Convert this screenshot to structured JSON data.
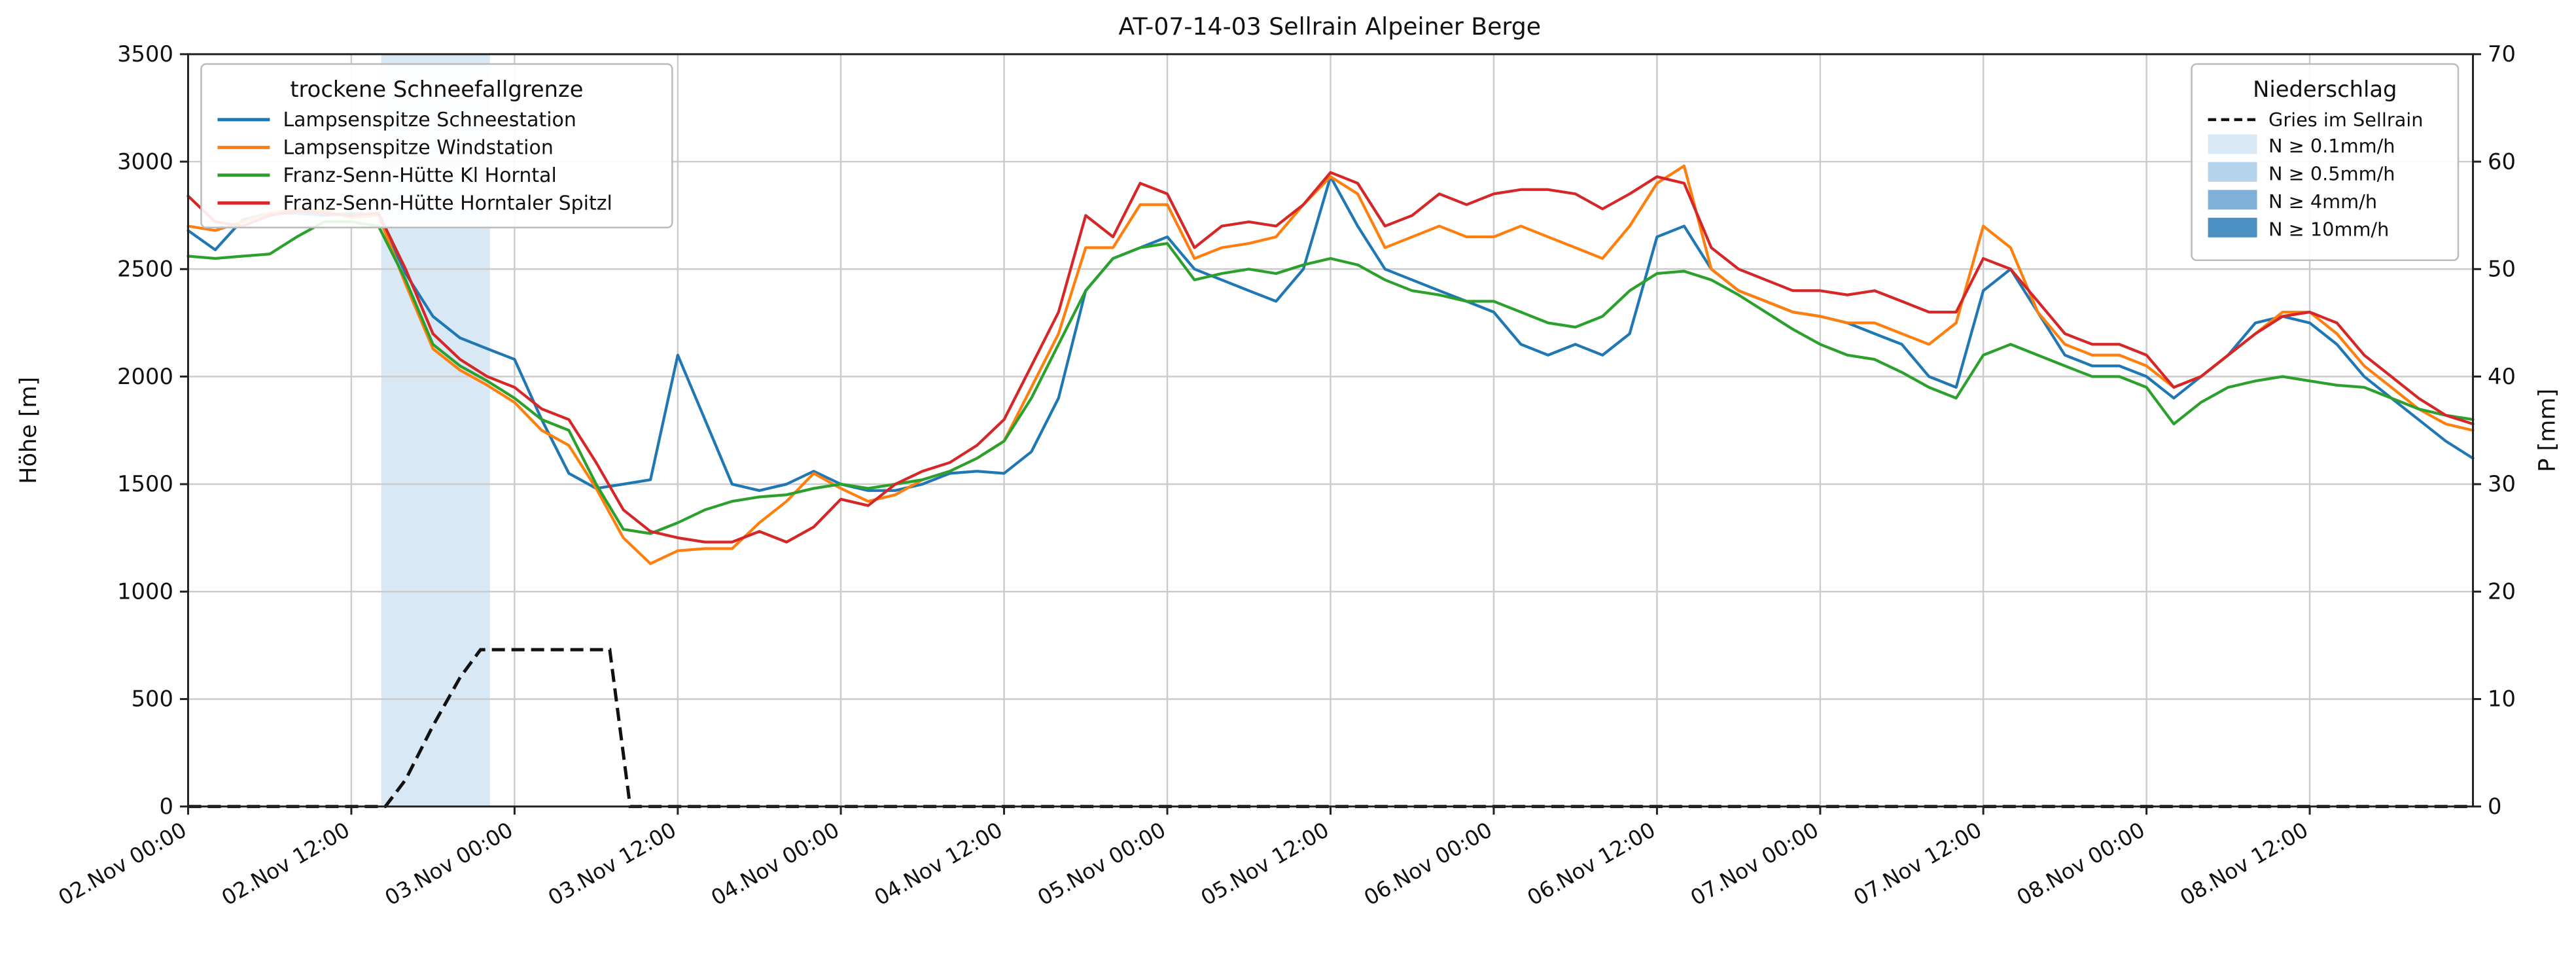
{
  "chart_data": {
    "type": "line",
    "title": "AT-07-14-03 Sellrain Alpeiner Berge",
    "ylabel_left": "Höhe [m]",
    "ylabel_right": "P [mm]",
    "ylim_left": [
      0,
      3500
    ],
    "ylim_right": [
      0,
      70
    ],
    "xlim": [
      0,
      168
    ],
    "x_unit": "hours since 02.Nov 00:00",
    "grid": true,
    "y_ticks_left": [
      0,
      500,
      1000,
      1500,
      2000,
      2500,
      3000,
      3500
    ],
    "y_ticks_right": [
      0,
      10,
      20,
      30,
      40,
      50,
      60,
      70
    ],
    "x_ticks": [
      {
        "t": 0,
        "label": "02.Nov 00:00"
      },
      {
        "t": 12,
        "label": "02.Nov 12:00"
      },
      {
        "t": 24,
        "label": "03.Nov 00:00"
      },
      {
        "t": 36,
        "label": "03.Nov 12:00"
      },
      {
        "t": 48,
        "label": "04.Nov 00:00"
      },
      {
        "t": 60,
        "label": "04.Nov 12:00"
      },
      {
        "t": 72,
        "label": "05.Nov 00:00"
      },
      {
        "t": 84,
        "label": "05.Nov 12:00"
      },
      {
        "t": 96,
        "label": "06.Nov 00:00"
      },
      {
        "t": 108,
        "label": "06.Nov 12:00"
      },
      {
        "t": 120,
        "label": "07.Nov 00:00"
      },
      {
        "t": 132,
        "label": "07.Nov 12:00"
      },
      {
        "t": 144,
        "label": "08.Nov 00:00"
      },
      {
        "t": 156,
        "label": "08.Nov 12:00"
      }
    ],
    "legend_snowline": {
      "title": "trockene Schneefallgrenze",
      "position": "upper left"
    },
    "legend_precip": {
      "title": "Niederschlag",
      "position": "upper right",
      "line_item": "Gries im Sellrain",
      "band_items": [
        {
          "label": "N ≥ 0.1mm/h",
          "color": "#d9e8f5"
        },
        {
          "label": "N ≥ 0.5mm/h",
          "color": "#b5d3ea"
        },
        {
          "label": "N ≥ 4mm/h",
          "color": "#7fb0d8"
        },
        {
          "label": "N ≥ 10mm/h",
          "color": "#4a90c2"
        }
      ]
    },
    "precip_bands": [
      {
        "t_start": 14.2,
        "t_end": 22.2,
        "level": "N ≥ 0.1mm/h",
        "color": "#d9e8f5"
      }
    ],
    "precip_line": {
      "name": "Gries im Sellrain",
      "color": "#000000",
      "style": "dashed",
      "axis": "right",
      "x": [
        0,
        14.5,
        16,
        18,
        20,
        21.5,
        24,
        28,
        31,
        32.5,
        36,
        168
      ],
      "values_mm": [
        0,
        0,
        2.5,
        7.5,
        12,
        14.6,
        14.6,
        14.6,
        14.6,
        0,
        0,
        0
      ]
    },
    "x_hours": [
      0,
      2,
      4,
      6,
      8,
      10,
      12,
      14,
      16,
      18,
      20,
      22,
      24,
      26,
      28,
      30,
      32,
      34,
      36,
      38,
      40,
      42,
      44,
      46,
      48,
      50,
      52,
      54,
      56,
      58,
      60,
      62,
      64,
      66,
      68,
      70,
      72,
      74,
      76,
      78,
      80,
      82,
      84,
      86,
      88,
      90,
      92,
      94,
      96,
      98,
      100,
      102,
      104,
      106,
      108,
      110,
      112,
      114,
      116,
      118,
      120,
      122,
      124,
      126,
      128,
      130,
      132,
      134,
      136,
      138,
      140,
      142,
      144,
      146,
      148,
      150,
      152,
      154,
      156,
      158,
      160,
      162,
      164,
      166,
      168
    ],
    "series": [
      {
        "id": "lampsenspitze-schneestation",
        "name": "Lampsenspitze Schneestation",
        "color": "#1f77b4",
        "values": [
          2680,
          2590,
          2730,
          2760,
          2760,
          2750,
          2760,
          2750,
          2480,
          2280,
          2180,
          2130,
          2080,
          1800,
          1550,
          1480,
          1500,
          1520,
          2100,
          1800,
          1500,
          1470,
          1500,
          1560,
          1500,
          1470,
          1470,
          1500,
          1550,
          1560,
          1550,
          1650,
          1900,
          2400,
          2550,
          2600,
          2650,
          2500,
          2450,
          2400,
          2350,
          2500,
          2930,
          2700,
          2500,
          2450,
          2400,
          2350,
          2300,
          2150,
          2100,
          2150,
          2100,
          2200,
          2650,
          2700,
          2500,
          2400,
          2350,
          2300,
          2280,
          2250,
          2200,
          2150,
          2000,
          1950,
          2400,
          2500,
          2300,
          2100,
          2050,
          2050,
          2000,
          1900,
          2000,
          2100,
          2250,
          2280,
          2250,
          2150,
          2000,
          1900,
          1800,
          1700,
          1620
        ]
      },
      {
        "id": "lampsenspitze-windstation",
        "name": "Lampsenspitze Windstation",
        "color": "#ff7f0e",
        "values": [
          2700,
          2680,
          2720,
          2760,
          2780,
          2770,
          2740,
          2750,
          2430,
          2130,
          2030,
          1960,
          1880,
          1750,
          1680,
          1480,
          1250,
          1130,
          1190,
          1200,
          1200,
          1320,
          1420,
          1550,
          1480,
          1420,
          1450,
          1520,
          1560,
          1620,
          1700,
          1950,
          2200,
          2600,
          2600,
          2800,
          2800,
          2550,
          2600,
          2620,
          2650,
          2800,
          2930,
          2850,
          2600,
          2650,
          2700,
          2650,
          2650,
          2700,
          2650,
          2600,
          2550,
          2700,
          2900,
          2980,
          2500,
          2400,
          2350,
          2300,
          2280,
          2250,
          2250,
          2200,
          2150,
          2250,
          2700,
          2600,
          2300,
          2150,
          2100,
          2100,
          2050,
          1950,
          2000,
          2100,
          2200,
          2300,
          2300,
          2200,
          2050,
          1950,
          1850,
          1780,
          1750
        ]
      },
      {
        "id": "franz-senn-huette-kl-horntal",
        "name": "Franz-Senn-Hütte Kl Horntal",
        "color": "#2ca02c",
        "values": [
          2560,
          2550,
          2560,
          2570,
          2650,
          2720,
          2720,
          2700,
          2450,
          2150,
          2050,
          1980,
          1900,
          1800,
          1750,
          1500,
          1290,
          1270,
          1320,
          1380,
          1420,
          1440,
          1450,
          1480,
          1500,
          1480,
          1500,
          1520,
          1560,
          1620,
          1700,
          1900,
          2150,
          2400,
          2550,
          2600,
          2620,
          2450,
          2480,
          2500,
          2480,
          2520,
          2550,
          2520,
          2450,
          2400,
          2380,
          2350,
          2350,
          2300,
          2250,
          2230,
          2280,
          2400,
          2480,
          2490,
          2450,
          2380,
          2300,
          2220,
          2150,
          2100,
          2080,
          2020,
          1950,
          1900,
          2100,
          2150,
          2100,
          2050,
          2000,
          2000,
          1950,
          1780,
          1880,
          1950,
          1980,
          2000,
          1980,
          1960,
          1950,
          1900,
          1850,
          1820,
          1800
        ]
      },
      {
        "id": "franz-senn-huette-horntaler-spitzl",
        "name": "Franz-Senn-Hütte Horntaler Spitzl",
        "color": "#d62728",
        "values": [
          2840,
          2720,
          2700,
          2750,
          2770,
          2760,
          2750,
          2760,
          2500,
          2200,
          2080,
          2000,
          1950,
          1850,
          1800,
          1600,
          1380,
          1280,
          1250,
          1230,
          1230,
          1280,
          1230,
          1300,
          1430,
          1400,
          1500,
          1560,
          1600,
          1680,
          1800,
          2050,
          2300,
          2750,
          2650,
          2900,
          2850,
          2600,
          2700,
          2720,
          2700,
          2800,
          2950,
          2900,
          2700,
          2750,
          2850,
          2800,
          2850,
          2870,
          2870,
          2850,
          2780,
          2850,
          2930,
          2900,
          2600,
          2500,
          2450,
          2400,
          2400,
          2380,
          2400,
          2350,
          2300,
          2300,
          2550,
          2500,
          2350,
          2200,
          2150,
          2150,
          2100,
          1950,
          2000,
          2100,
          2200,
          2280,
          2300,
          2250,
          2100,
          2000,
          1900,
          1820,
          1780
        ]
      }
    ]
  }
}
